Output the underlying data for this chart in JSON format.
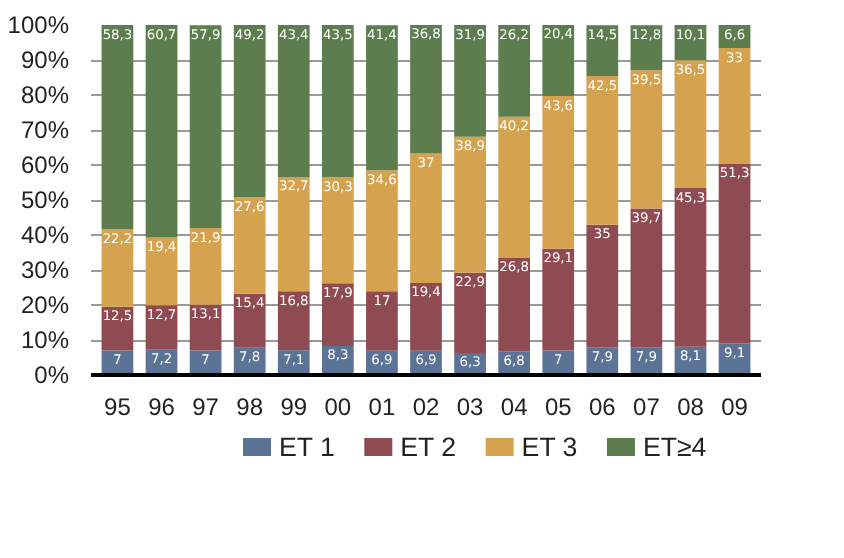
{
  "chart_data": {
    "type": "bar",
    "stacked": true,
    "categories": [
      "95",
      "96",
      "97",
      "98",
      "99",
      "00",
      "01",
      "02",
      "03",
      "04",
      "05",
      "06",
      "07",
      "08",
      "09"
    ],
    "series": [
      {
        "name": "ET 1",
        "color": "#5b7394",
        "values": [
          7,
          7.2,
          7,
          7.8,
          7.1,
          8.3,
          6.9,
          6.9,
          6.3,
          6.8,
          7,
          7.9,
          7.9,
          8.1,
          9.1
        ],
        "value_labels": [
          "7",
          "7,2",
          "7",
          "7,8",
          "7,1",
          "8,3",
          "6,9",
          "6,9",
          "6,3",
          "6,8",
          "7",
          "7,9",
          "7,9",
          "8,1",
          "9,1"
        ]
      },
      {
        "name": "ET 2",
        "color": "#8f4b52",
        "values": [
          12.5,
          12.7,
          13.1,
          15.4,
          16.8,
          17.9,
          17,
          19.4,
          22.9,
          26.8,
          29.1,
          35,
          39.7,
          45.3,
          51.3
        ],
        "value_labels": [
          "12,5",
          "12,7",
          "13,1",
          "15,4",
          "16,8",
          "17,9",
          "17",
          "19,4",
          "22,9",
          "26,8",
          "29,1",
          "35",
          "39,7",
          "45,3",
          "51,3"
        ]
      },
      {
        "name": "ET 3",
        "color": "#d5a24f",
        "values": [
          22.2,
          19.4,
          21.9,
          27.6,
          32.7,
          30.3,
          34.6,
          37,
          38.9,
          40.2,
          43.6,
          42.5,
          39.5,
          36.5,
          33
        ],
        "value_labels": [
          "22,2",
          "19,4",
          "21,9",
          "27,6",
          "32,7",
          "30,3",
          "34,6",
          "37",
          "38,9",
          "40,2",
          "43,6",
          "42,5",
          "39,5",
          "36,5",
          "33"
        ]
      },
      {
        "name": "ET≥4",
        "color": "#5c7d4d",
        "values": [
          58.3,
          60.7,
          57.9,
          49.2,
          43.4,
          43.5,
          41.4,
          36.8,
          31.9,
          26.2,
          20.4,
          14.5,
          12.8,
          10.1,
          6.6
        ],
        "value_labels": [
          "58,3",
          "60,7",
          "57,9",
          "49,2",
          "43,4",
          "43,5",
          "41,4",
          "36,8",
          "31,9",
          "26,2",
          "20,4",
          "14,5",
          "12,8",
          "10,1",
          "6,6"
        ]
      }
    ],
    "ylim": [
      0,
      100
    ],
    "yticks": [
      {
        "value": 0,
        "label": "0%"
      },
      {
        "value": 10,
        "label": "10%"
      },
      {
        "value": 20,
        "label": "20%"
      },
      {
        "value": 30,
        "label": "30%"
      },
      {
        "value": 40,
        "label": "40%"
      },
      {
        "value": 50,
        "label": "50%"
      },
      {
        "value": 60,
        "label": "60%"
      },
      {
        "value": 70,
        "label": "70%"
      },
      {
        "value": 80,
        "label": "80%"
      },
      {
        "value": 90,
        "label": "90%"
      },
      {
        "value": 100,
        "label": "100%"
      }
    ],
    "grid": "y",
    "legend": "bottom"
  }
}
